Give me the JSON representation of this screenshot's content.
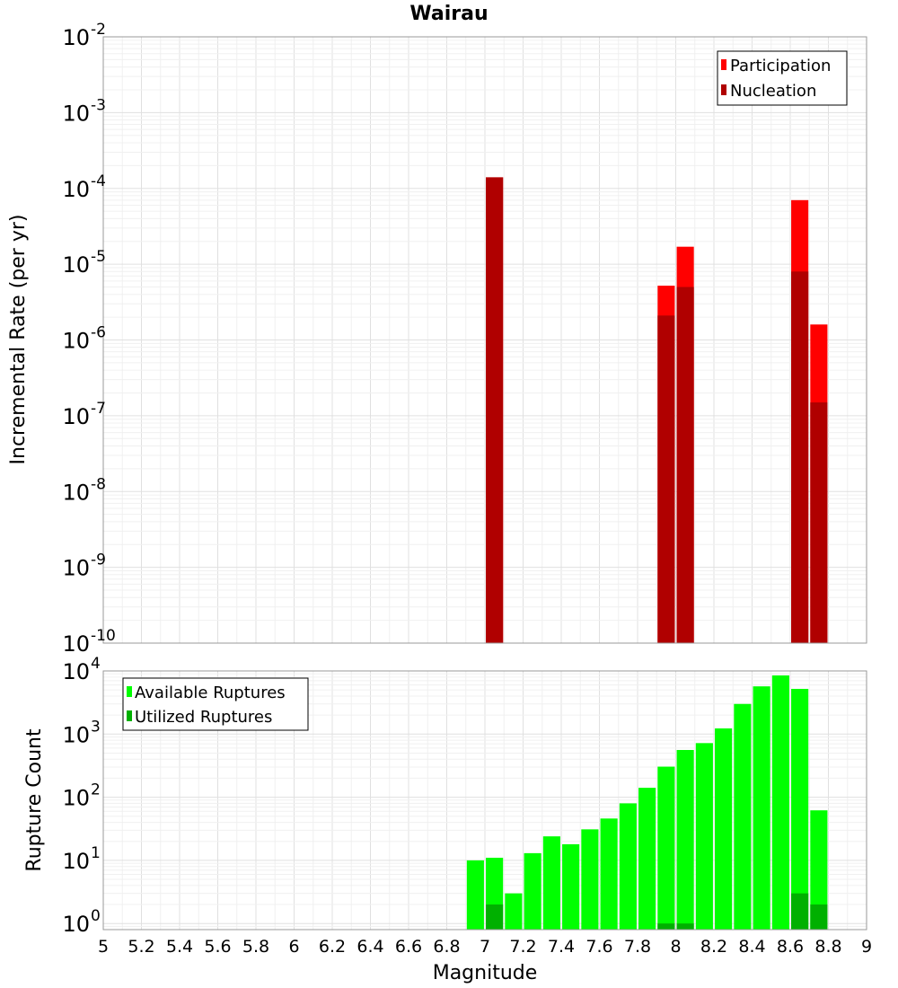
{
  "title": "Wairau",
  "colors": {
    "participation": "#ff0000",
    "nucleation": "#b00000",
    "available": "#00ff00",
    "utilized": "#00b000",
    "grid_major": "#e0e0e0",
    "grid_minor": "#f0f0f0",
    "frame": "#999999"
  },
  "x_axis": {
    "label": "Magnitude",
    "range": [
      5,
      9
    ],
    "ticks": [
      "5",
      "5.2",
      "5.4",
      "5.6",
      "5.8",
      "6",
      "6.2",
      "6.4",
      "6.6",
      "6.8",
      "7",
      "7.2",
      "7.4",
      "7.6",
      "7.8",
      "8",
      "8.2",
      "8.4",
      "8.6",
      "8.8",
      "9"
    ]
  },
  "chart_data": [
    {
      "type": "bar",
      "title": "Wairau",
      "xlabel": "Magnitude",
      "ylabel": "Incremental Rate (per yr)",
      "y_scale": "log",
      "ylim": [
        1e-10,
        0.01
      ],
      "y_tick_exponents": [
        "-10",
        "-9",
        "-8",
        "-7",
        "-6",
        "-5",
        "-4",
        "-3",
        "-2"
      ],
      "legend_position": "top-right",
      "bar_width": 0.09,
      "series": [
        {
          "name": "Participation",
          "color": "#ff0000",
          "x": [
            7.05,
            7.95,
            8.05,
            8.65,
            8.75
          ],
          "values": [
            0.00014,
            5.2e-06,
            1.7e-05,
            7e-05,
            1.6e-06
          ]
        },
        {
          "name": "Nucleation",
          "color": "#b00000",
          "x": [
            7.05,
            7.95,
            8.05,
            8.65,
            8.75
          ],
          "values": [
            0.00014,
            2.1e-06,
            5e-06,
            8e-06,
            1.5e-07
          ]
        }
      ]
    },
    {
      "type": "bar",
      "xlabel": "Magnitude",
      "ylabel": "Rupture Count",
      "y_scale": "log",
      "ylim": [
        0.8,
        10000
      ],
      "y_tick_exponents": [
        "0",
        "1",
        "2",
        "3",
        "4"
      ],
      "legend_position": "top-left",
      "bar_width": 0.09,
      "series": [
        {
          "name": "Available Ruptures",
          "color": "#00ff00",
          "x": [
            6.95,
            7.05,
            7.15,
            7.25,
            7.35,
            7.45,
            7.55,
            7.65,
            7.75,
            7.85,
            7.95,
            8.05,
            8.15,
            8.25,
            8.35,
            8.45,
            8.55,
            8.65,
            8.75
          ],
          "values": [
            10,
            11,
            3,
            13,
            24,
            18,
            31,
            46,
            80,
            141,
            305,
            560,
            720,
            1230,
            3000,
            5700,
            8500,
            5200,
            62
          ]
        },
        {
          "name": "Utilized Ruptures",
          "color": "#00b000",
          "x": [
            7.05,
            7.95,
            8.05,
            8.65,
            8.75
          ],
          "values": [
            2,
            1,
            1,
            3,
            2
          ]
        }
      ]
    }
  ]
}
